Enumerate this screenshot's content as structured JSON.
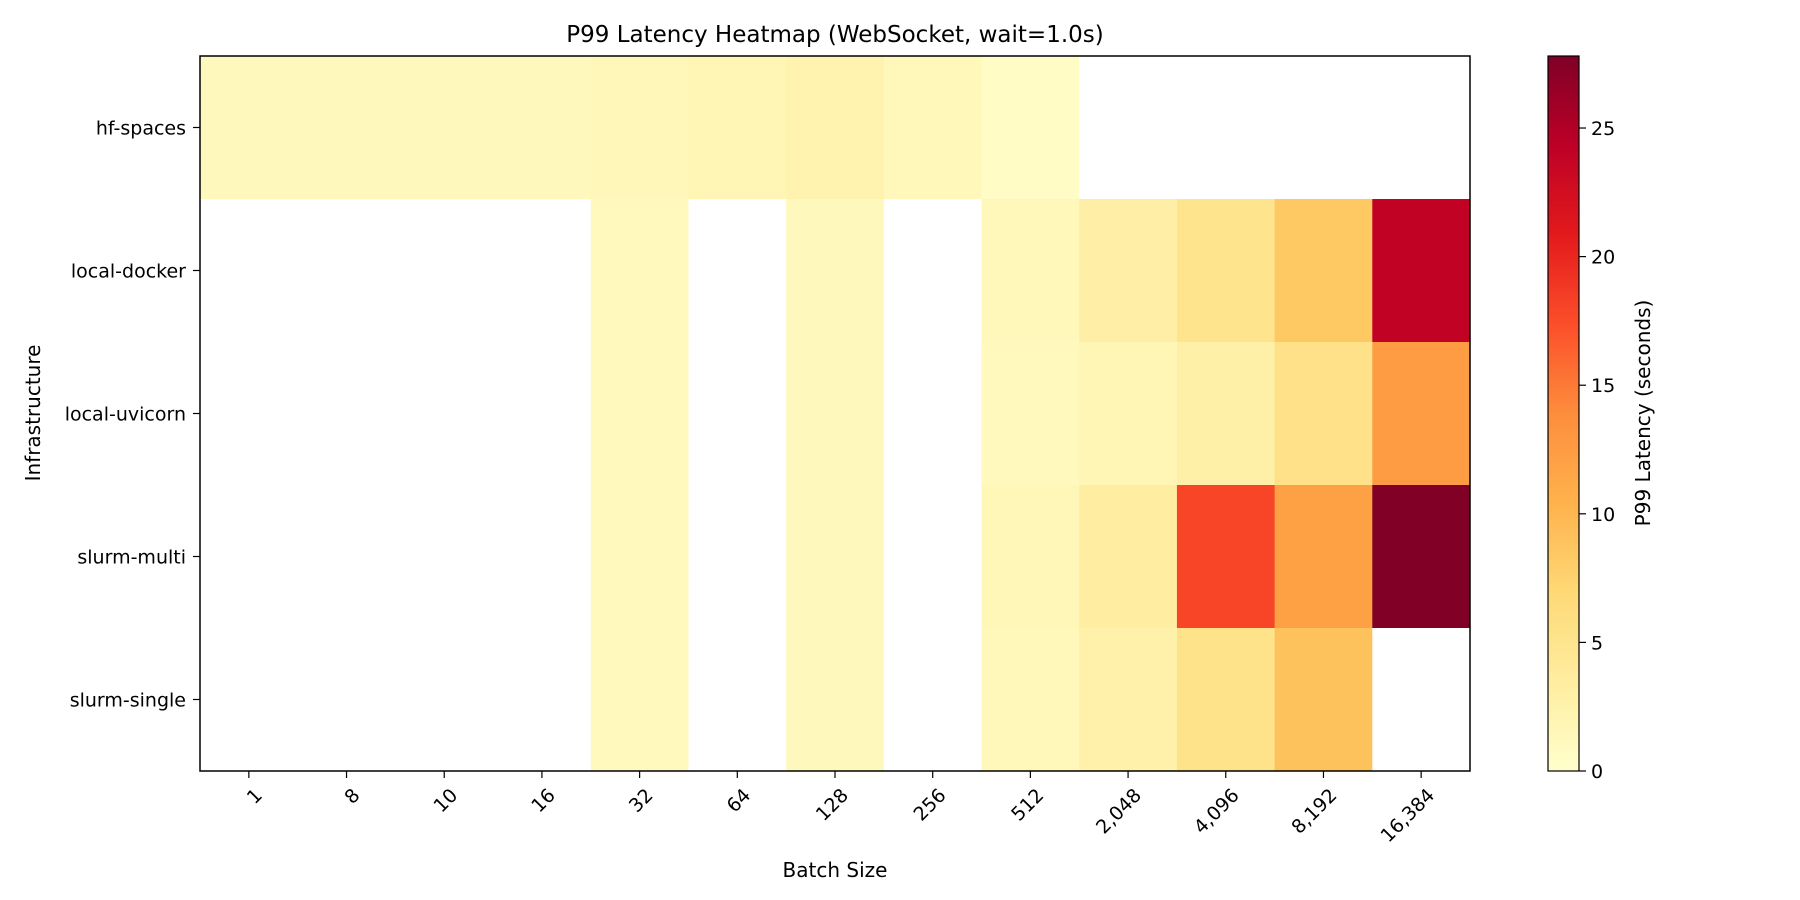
{
  "chart_data": {
    "type": "heatmap",
    "title": "P99 Latency Heatmap (WebSocket, wait=1.0s)",
    "xlabel": "Batch Size",
    "ylabel": "Infrastructure",
    "x_categories": [
      "1",
      "8",
      "10",
      "16",
      "32",
      "64",
      "128",
      "256",
      "512",
      "2,048",
      "4,096",
      "8,192",
      "16,384"
    ],
    "y_categories": [
      "hf-spaces",
      "local-docker",
      "local-uvicorn",
      "slurm-multi",
      "slurm-single"
    ],
    "values": [
      [
        1.3,
        1.3,
        1.3,
        1.3,
        1.5,
        1.8,
        2.3,
        1.4,
        0.5,
        null,
        null,
        null,
        null
      ],
      [
        null,
        null,
        null,
        null,
        1.2,
        null,
        1.3,
        null,
        1.4,
        3.0,
        5.0,
        8.5,
        24.0
      ],
      [
        null,
        null,
        null,
        null,
        1.2,
        null,
        1.3,
        null,
        1.2,
        1.8,
        2.9,
        5.5,
        12.5
      ],
      [
        null,
        null,
        null,
        null,
        1.2,
        null,
        1.3,
        null,
        1.6,
        3.3,
        18.0,
        12.0,
        27.8
      ],
      [
        null,
        null,
        null,
        null,
        1.2,
        null,
        1.3,
        null,
        1.4,
        2.7,
        5.2,
        9.0,
        null
      ]
    ],
    "colorbar": {
      "label": "P99 Latency (seconds)",
      "range": [
        0,
        27.8
      ],
      "ticks": [
        0,
        5,
        10,
        15,
        20,
        25
      ],
      "colormap": "YlOrRd",
      "colormap_stops": [
        "#ffffcc",
        "#ffeda0",
        "#fed976",
        "#feb24c",
        "#fd8d3c",
        "#fc4e2a",
        "#e31a1c",
        "#bd0026",
        "#800026"
      ]
    },
    "missing_color": "#ffffff"
  }
}
